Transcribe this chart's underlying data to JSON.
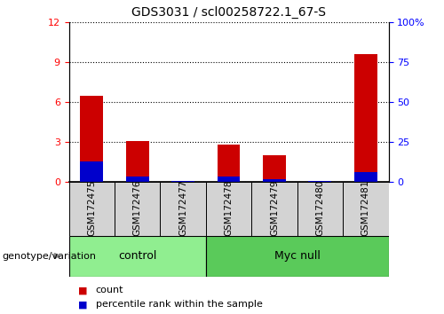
{
  "title": "GDS3031 / scl00258722.1_67-S",
  "samples": [
    "GSM172475",
    "GSM172476",
    "GSM172477",
    "GSM172478",
    "GSM172479",
    "GSM172480",
    "GSM172481"
  ],
  "count_values": [
    6.5,
    3.1,
    0.05,
    2.8,
    2.0,
    0.05,
    9.6
  ],
  "percentile_values": [
    13.0,
    3.5,
    0.5,
    3.5,
    2.0,
    0.5,
    6.0
  ],
  "groups": [
    {
      "label": "control",
      "span": [
        0,
        2
      ]
    },
    {
      "label": "Myc null",
      "span": [
        3,
        6
      ]
    }
  ],
  "group_divider": 2.5,
  "ylim_left": [
    0,
    12
  ],
  "ylim_right": [
    0,
    100
  ],
  "yticks_left": [
    0,
    3,
    6,
    9,
    12
  ],
  "yticks_right": [
    0,
    25,
    50,
    75,
    100
  ],
  "bar_width": 0.5,
  "count_color": "#CC0000",
  "percentile_color": "#0000CC",
  "group_color_light": "#90EE90",
  "group_color_darker": "#5ACA5A",
  "sample_box_color": "#D3D3D3",
  "legend_count": "count",
  "legend_percentile": "percentile rank within the sample",
  "genotype_label": "genotype/variation"
}
